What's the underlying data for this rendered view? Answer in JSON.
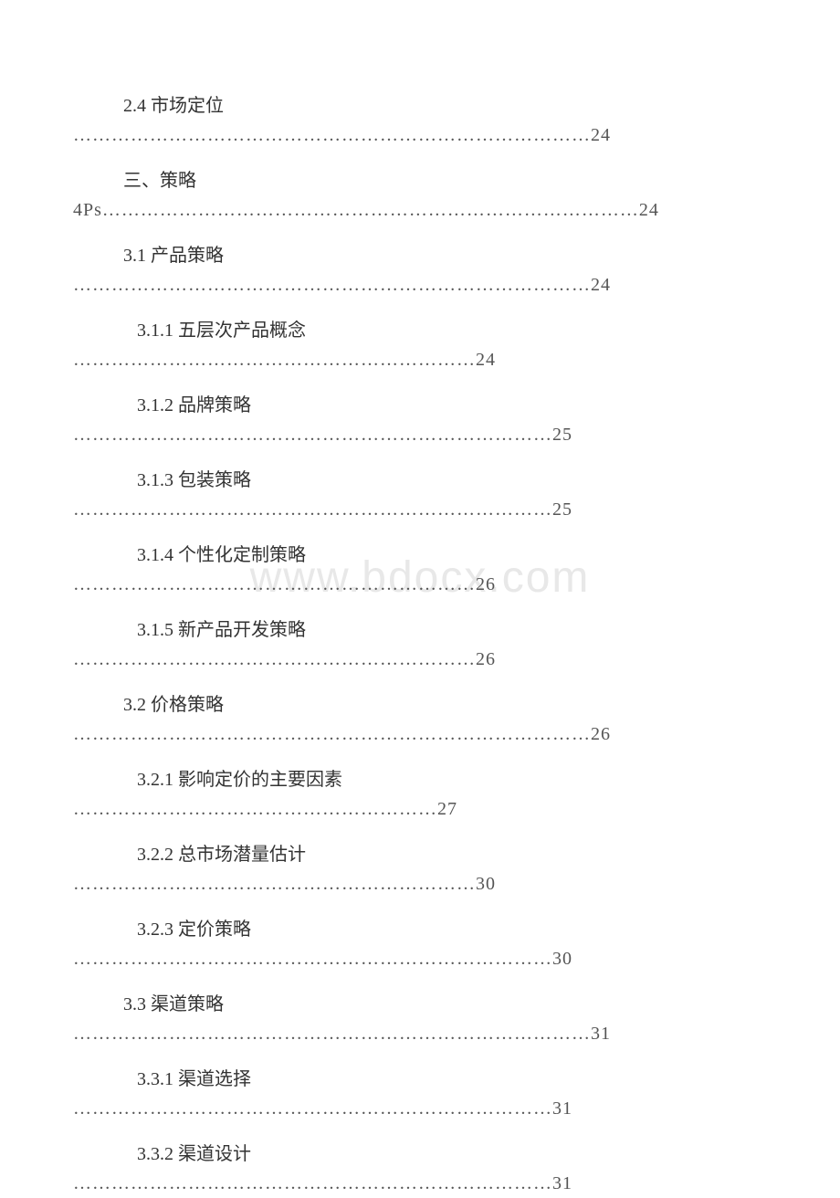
{
  "watermark": "www.bdocx.com",
  "colors": {
    "background": "#ffffff",
    "text": "#333333",
    "dots": "#555555",
    "watermark": "#e8e8e8"
  },
  "typography": {
    "body_fontsize": 20,
    "watermark_fontsize": 48,
    "font_family": "SimSun"
  },
  "toc": [
    {
      "title": "2.4 市场定位",
      "dots": "………………………………………………………………………",
      "page": "24",
      "indent": 1
    },
    {
      "title": "三、策略",
      "prefix": "4Ps",
      "dots": "…………………………………………………………………………",
      "page": "24",
      "indent": 1
    },
    {
      "title": "3.1 产品策略",
      "dots": "………………………………………………………………………",
      "page": "24",
      "indent": 1
    },
    {
      "title": "3.1.1 五层次产品概念",
      "dots": "………………………………………………………",
      "page": "24",
      "indent": 2
    },
    {
      "title": "3.1.2 品牌策略",
      "dots": "…………………………………………………………………",
      "page": "25",
      "indent": 2
    },
    {
      "title": "3.1.3 包装策略",
      "dots": "…………………………………………………………………",
      "page": "25",
      "indent": 2
    },
    {
      "title": "3.1.4 个性化定制策略",
      "dots": "………………………………………………………",
      "page": "26",
      "indent": 2
    },
    {
      "title": "3.1.5 新产品开发策略",
      "dots": "………………………………………………………",
      "page": "26",
      "indent": 2
    },
    {
      "title": "3.2 价格策略",
      "dots": "………………………………………………………………………",
      "page": "26",
      "indent": 1
    },
    {
      "title": "3.2.1 影响定价的主要因素",
      "dots": "…………………………………………………",
      "page": "27",
      "indent": 2
    },
    {
      "title": "3.2.2 总市场潜量估计",
      "dots": "………………………………………………………",
      "page": "30",
      "indent": 2
    },
    {
      "title": "3.2.3 定价策略",
      "dots": "…………………………………………………………………",
      "page": "30",
      "indent": 2
    },
    {
      "title": "3.3 渠道策略",
      "dots": "………………………………………………………………………",
      "page": "31",
      "indent": 1
    },
    {
      "title": "3.3.1 渠道选择",
      "dots": "…………………………………………………………………",
      "page": "31",
      "indent": 2
    },
    {
      "title": "3.3.2 渠道设计",
      "dots": "…………………………………………………………………",
      "page": "31",
      "indent": 2
    }
  ]
}
